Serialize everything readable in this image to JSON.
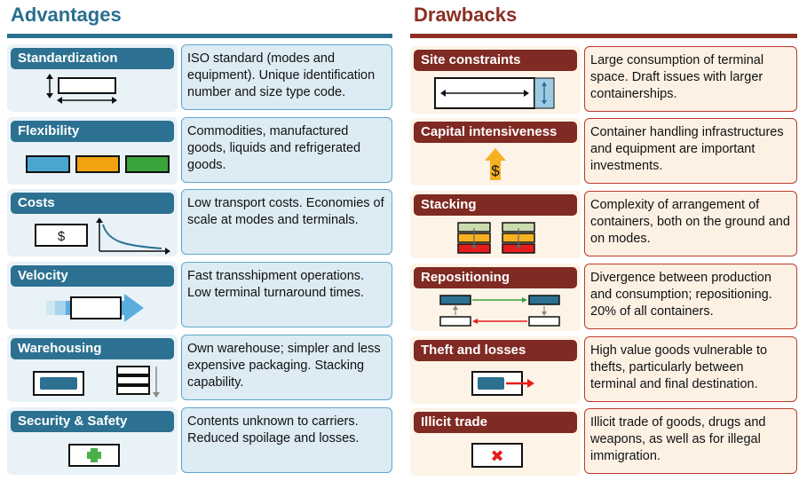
{
  "advantages": {
    "title": "Advantages",
    "items": [
      {
        "label": "Standardization",
        "desc": "ISO standard (modes and equipment). Unique identification number and size type code.",
        "icon": "container-dimensions-icon"
      },
      {
        "label": "Flexibility",
        "desc": "Commodities, manufactured goods, liquids and refrigerated goods.",
        "icon": "multi-container-icon"
      },
      {
        "label": "Costs",
        "desc": "Low transport costs. Economies of scale at modes and terminals.",
        "icon": "cost-curve-icon",
        "symbol": "$"
      },
      {
        "label": "Velocity",
        "desc": "Fast transshipment operations. Low terminal turnaround times.",
        "icon": "fast-container-icon"
      },
      {
        "label": "Warehousing",
        "desc": "Own warehouse; simpler and less expensive packaging. Stacking capability.",
        "icon": "warehouse-stack-icon"
      },
      {
        "label": "Security & Safety",
        "desc": "Contents unknown to carriers. Reduced spoilage and losses.",
        "icon": "safety-cross-icon"
      }
    ]
  },
  "drawbacks": {
    "title": "Drawbacks",
    "items": [
      {
        "label": "Site constraints",
        "desc": "Large consumption of terminal space. Draft issues with larger containerships.",
        "icon": "site-space-icon"
      },
      {
        "label": "Capital intensiveness",
        "desc": "Container handling infrastructures and equipment are important investments.",
        "icon": "capital-arrow-icon",
        "symbol": "$"
      },
      {
        "label": "Stacking",
        "desc": "Complexity of arrangement of containers, both on the ground and on modes.",
        "icon": "stacking-icon"
      },
      {
        "label": "Repositioning",
        "desc": "Divergence between production and consumption; repositioning. 20% of all containers.",
        "icon": "repositioning-icon"
      },
      {
        "label": "Theft and losses",
        "desc": "High value goods vulnerable to thefts, particularly between terminal and final destination.",
        "icon": "theft-icon"
      },
      {
        "label": "Illicit trade",
        "desc": "Illicit trade of goods, drugs and weapons, as well as for illegal immigration.",
        "icon": "illicit-x-icon",
        "symbol": "✖"
      }
    ]
  },
  "colors": {
    "advantage_accent": "#2c7191",
    "drawback_accent": "#7f2a22",
    "container_blue": "#2c7191",
    "flex_blue": "#4aa6cf",
    "flex_orange": "#f2a30f",
    "flex_green": "#3aa33c",
    "velocity_arrow": "#5aaede",
    "stack_green": "#c9dcb0",
    "stack_orange": "#f6b021",
    "stack_red": "#e31d1d",
    "safety_green": "#49b14a",
    "theft_red": "#e31d1d",
    "capital_yellow": "#f6b021"
  }
}
